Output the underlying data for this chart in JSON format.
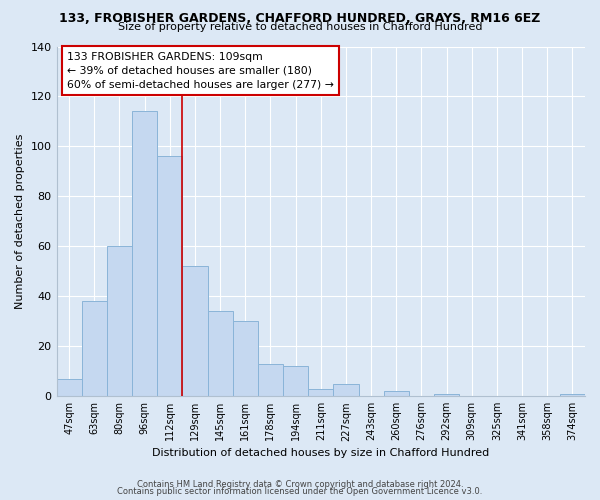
{
  "title": "133, FROBISHER GARDENS, CHAFFORD HUNDRED, GRAYS, RM16 6EZ",
  "subtitle": "Size of property relative to detached houses in Chafford Hundred",
  "xlabel": "Distribution of detached houses by size in Chafford Hundred",
  "ylabel": "Number of detached properties",
  "bar_labels": [
    "47sqm",
    "63sqm",
    "80sqm",
    "96sqm",
    "112sqm",
    "129sqm",
    "145sqm",
    "161sqm",
    "178sqm",
    "194sqm",
    "211sqm",
    "227sqm",
    "243sqm",
    "260sqm",
    "276sqm",
    "292sqm",
    "309sqm",
    "325sqm",
    "341sqm",
    "358sqm",
    "374sqm"
  ],
  "bar_values": [
    7,
    38,
    60,
    114,
    96,
    52,
    34,
    30,
    13,
    12,
    3,
    5,
    0,
    2,
    0,
    1,
    0,
    0,
    0,
    0,
    1
  ],
  "bar_color": "#c5d8f0",
  "bar_edge_color": "#8ab4d8",
  "vline_x": 4.5,
  "vline_color": "#cc0000",
  "annotation_line1": "133 FROBISHER GARDENS: 109sqm",
  "annotation_line2": "← 39% of detached houses are smaller (180)",
  "annotation_line3": "60% of semi-detached houses are larger (277) →",
  "annotation_box_color": "#ffffff",
  "annotation_box_edge_color": "#cc0000",
  "ylim": [
    0,
    140
  ],
  "yticks": [
    0,
    20,
    40,
    60,
    80,
    100,
    120,
    140
  ],
  "footer_line1": "Contains HM Land Registry data © Crown copyright and database right 2024.",
  "footer_line2": "Contains public sector information licensed under the Open Government Licence v3.0.",
  "background_color": "#dce8f5",
  "plot_bg_color": "#dce8f5",
  "grid_color": "#ffffff",
  "spine_color": "#b0c0d0"
}
